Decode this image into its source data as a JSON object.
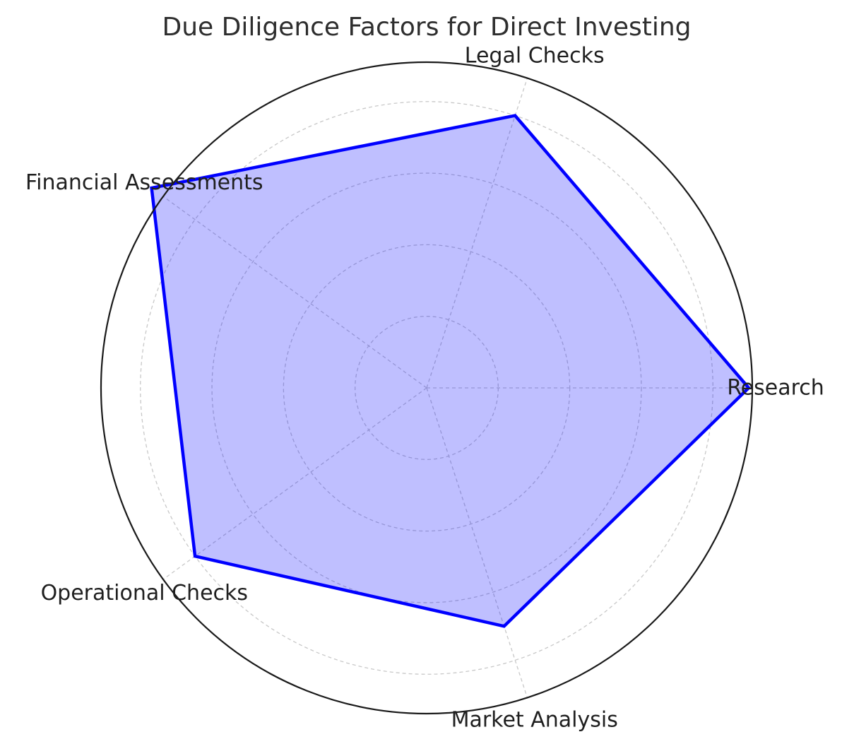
{
  "chart_data": {
    "type": "radar",
    "title": "Due Diligence Factors for Direct Investing",
    "categories": [
      "Research",
      "Legal Checks",
      "Financial Assessments",
      "Operational Checks",
      "Market Analysis"
    ],
    "values": [
      9,
      8,
      9.5,
      8,
      7
    ],
    "rlim": [
      0,
      9.1
    ],
    "grid": true,
    "colors": {
      "line": "#0000ff",
      "fill": "#0000ff",
      "fill_opacity": 0.25
    }
  }
}
